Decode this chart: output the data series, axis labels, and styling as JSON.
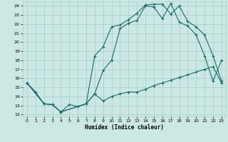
{
  "xlabel": "Humidex (Indice chaleur)",
  "bg_color": "#cce8e5",
  "grid_color": "#aacfcc",
  "line_color": "#1a6b6b",
  "xlim": [
    -0.5,
    23.5
  ],
  "ylim": [
    11.8,
    24.5
  ],
  "yticks": [
    12,
    13,
    14,
    15,
    16,
    17,
    18,
    19,
    20,
    21,
    22,
    23,
    24
  ],
  "xticks": [
    0,
    1,
    2,
    3,
    4,
    5,
    6,
    7,
    8,
    9,
    10,
    11,
    12,
    13,
    14,
    15,
    16,
    17,
    18,
    19,
    20,
    21,
    22,
    23
  ],
  "line1_x": [
    0,
    1,
    2,
    3,
    4,
    5,
    6,
    7,
    8,
    9,
    10,
    11,
    12,
    13,
    14,
    15,
    16,
    17,
    18,
    19,
    20,
    21,
    22,
    23
  ],
  "line1_y": [
    15.5,
    14.5,
    13.2,
    13.1,
    12.3,
    13.1,
    12.9,
    13.2,
    14.3,
    13.5,
    14.0,
    14.3,
    14.5,
    14.5,
    14.8,
    15.2,
    15.5,
    15.8,
    16.1,
    16.4,
    16.7,
    17.0,
    17.3,
    15.5
  ],
  "line2_x": [
    0,
    2,
    3,
    4,
    7,
    8,
    9,
    10,
    11,
    12,
    13,
    14,
    15,
    16,
    17,
    18,
    19,
    20,
    21,
    22,
    23
  ],
  "line2_y": [
    15.5,
    13.2,
    13.1,
    12.3,
    13.2,
    18.5,
    19.5,
    21.7,
    21.9,
    22.5,
    23.2,
    24.1,
    24.2,
    24.2,
    23.1,
    24.0,
    22.3,
    21.7,
    20.8,
    18.5,
    15.7
  ],
  "line3_x": [
    0,
    2,
    3,
    4,
    7,
    8,
    9,
    10,
    11,
    12,
    13,
    14,
    15,
    16,
    17,
    18,
    19,
    20,
    21,
    22,
    23
  ],
  "line3_y": [
    15.5,
    13.2,
    13.1,
    12.3,
    13.2,
    14.3,
    16.9,
    18.0,
    21.5,
    22.1,
    22.4,
    24.0,
    23.9,
    22.6,
    24.3,
    22.2,
    21.8,
    20.8,
    18.5,
    15.7,
    18.0
  ]
}
